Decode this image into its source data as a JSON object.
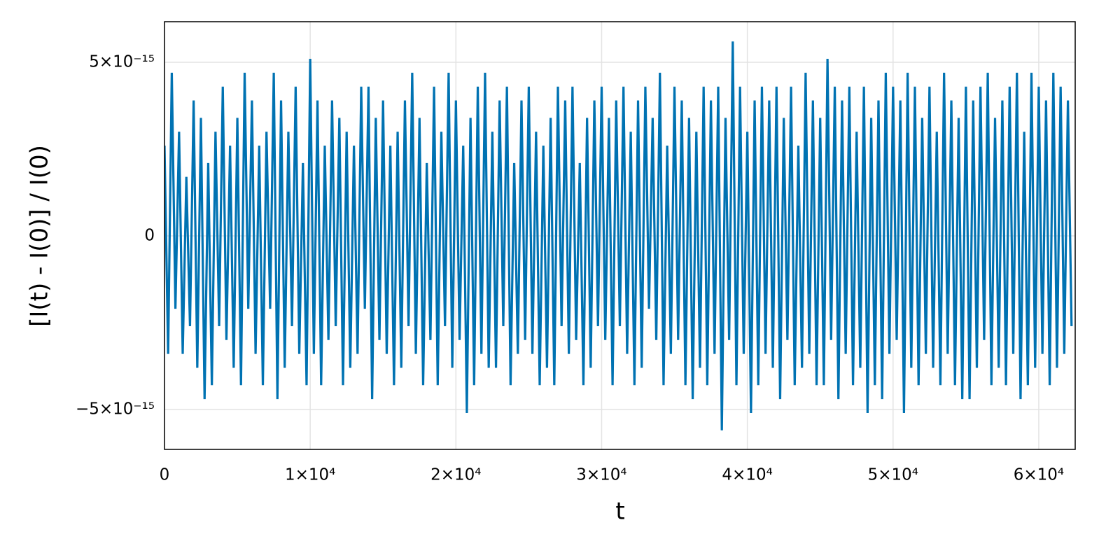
{
  "chart_data": {
    "type": "line",
    "x_label": "t",
    "y_label": "[I(t) - I(0)] / I(0)",
    "color": "#0072b2",
    "grid": true,
    "xlim": [
      0,
      62500
    ],
    "ylim": [
      -6.15e-15,
      6.17e-15
    ],
    "xticks": [
      0,
      {
        "value": 10000,
        "label": "1×10⁴"
      },
      {
        "value": 20000,
        "label": "2×10⁴"
      },
      {
        "value": 30000,
        "label": "3×10⁴"
      },
      {
        "value": 40000,
        "label": "4×10⁴"
      },
      {
        "value": 50000,
        "label": "5×10⁴"
      },
      {
        "value": 60000,
        "label": "6×10⁴"
      }
    ],
    "yticks": [
      {
        "value": -5e-15,
        "label": "−5×10⁻¹⁵"
      },
      0,
      {
        "value": 5e-15,
        "label": "5×10⁻¹⁵"
      }
    ],
    "x": [
      0,
      250,
      500,
      750,
      1000,
      1250,
      1500,
      1750,
      2000,
      2250,
      2500,
      2750,
      3000,
      3250,
      3500,
      3750,
      4000,
      4250,
      4500,
      4750,
      5000,
      5250,
      5500,
      5750,
      6000,
      6250,
      6500,
      6750,
      7000,
      7250,
      7500,
      7750,
      8000,
      8250,
      8500,
      8750,
      9000,
      9250,
      9500,
      9750,
      10000,
      10250,
      10500,
      10750,
      11000,
      11250,
      11500,
      11750,
      12000,
      12250,
      12500,
      12750,
      13000,
      13250,
      13500,
      13750,
      14000,
      14250,
      14500,
      14750,
      15000,
      15250,
      15500,
      15750,
      16000,
      16250,
      16500,
      16750,
      17000,
      17250,
      17500,
      17750,
      18000,
      18250,
      18500,
      18750,
      19000,
      19250,
      19500,
      19750,
      20000,
      20250,
      20500,
      20750,
      21000,
      21250,
      21500,
      21750,
      22000,
      22250,
      22500,
      22750,
      23000,
      23250,
      23500,
      23750,
      24000,
      24250,
      24500,
      24750,
      25000,
      25250,
      25500,
      25750,
      26000,
      26250,
      26500,
      26750,
      27000,
      27250,
      27500,
      27750,
      28000,
      28250,
      28500,
      28750,
      29000,
      29250,
      29500,
      29750,
      30000,
      30250,
      30500,
      30750,
      31000,
      31250,
      31500,
      31750,
      32000,
      32250,
      32500,
      32750,
      33000,
      33250,
      33500,
      33750,
      34000,
      34250,
      34500,
      34750,
      35000,
      35250,
      35500,
      35750,
      36000,
      36250,
      36500,
      36750,
      37000,
      37250,
      37500,
      37750,
      38000,
      38250,
      38500,
      38750,
      39000,
      39250,
      39500,
      39750,
      40000,
      40250,
      40500,
      40750,
      41000,
      41250,
      41500,
      41750,
      42000,
      42250,
      42500,
      42750,
      43000,
      43250,
      43500,
      43750,
      44000,
      44250,
      44500,
      44750,
      45000,
      45250,
      45500,
      45750,
      46000,
      46250,
      46500,
      46750,
      47000,
      47250,
      47500,
      47750,
      48000,
      48250,
      48500,
      48750,
      49000,
      49250,
      49500,
      49750,
      50000,
      50250,
      50500,
      50750,
      51000,
      51250,
      51500,
      51750,
      52000,
      52250,
      52500,
      52750,
      53000,
      53250,
      53500,
      53750,
      54000,
      54250,
      54500,
      54750,
      55000,
      55250,
      55500,
      55750,
      56000,
      56250,
      56500,
      56750,
      57000,
      57250,
      57500,
      57750,
      58000,
      58250,
      58500,
      58750,
      59000,
      59250,
      59500,
      59750,
      60000,
      60250,
      60500,
      60750,
      61000,
      61250,
      61500,
      61750,
      62000,
      62250
    ],
    "values": [
      2.6e-15,
      -3.4e-15,
      4.7e-15,
      -2.1e-15,
      3e-15,
      -3.4e-15,
      1.7e-15,
      -2.6e-15,
      3.9e-15,
      -3.8e-15,
      3.4e-15,
      -4.7e-15,
      2.1e-15,
      -4.3e-15,
      3e-15,
      -2.6e-15,
      4.3e-15,
      -3e-15,
      2.6e-15,
      -3.8e-15,
      3.4e-15,
      -4.3e-15,
      4.7e-15,
      -2.1e-15,
      3.9e-15,
      -3.4e-15,
      2.6e-15,
      -4.3e-15,
      3e-15,
      -2.1e-15,
      4.7e-15,
      -4.7e-15,
      3.9e-15,
      -3.8e-15,
      3e-15,
      -2.6e-15,
      4.3e-15,
      -3.4e-15,
      2.1e-15,
      -4.3e-15,
      5.1e-15,
      -3.4e-15,
      3.9e-15,
      -4.3e-15,
      2.6e-15,
      -3e-15,
      3.9e-15,
      -2.6e-15,
      3.4e-15,
      -4.3e-15,
      3e-15,
      -3.8e-15,
      2.6e-15,
      -3.4e-15,
      4.3e-15,
      -2.1e-15,
      4.3e-15,
      -4.7e-15,
      3.4e-15,
      -3e-15,
      3.9e-15,
      -3.4e-15,
      2.6e-15,
      -4.3e-15,
      3e-15,
      -3.8e-15,
      3.9e-15,
      -2.6e-15,
      4.7e-15,
      -3.4e-15,
      3.4e-15,
      -4.3e-15,
      2.1e-15,
      -3e-15,
      4.3e-15,
      -4.3e-15,
      3e-15,
      -2.6e-15,
      4.7e-15,
      -3.8e-15,
      3.9e-15,
      -3e-15,
      2.6e-15,
      -5.1e-15,
      3.4e-15,
      -4.3e-15,
      4.3e-15,
      -3.4e-15,
      4.7e-15,
      -3.8e-15,
      3e-15,
      -3.8e-15,
      3.9e-15,
      -2.6e-15,
      4.3e-15,
      -4.3e-15,
      2.1e-15,
      -3.4e-15,
      3.9e-15,
      -3e-15,
      4.3e-15,
      -3.4e-15,
      3e-15,
      -4.3e-15,
      2.6e-15,
      -3.8e-15,
      3.4e-15,
      -4.3e-15,
      4.3e-15,
      -2.6e-15,
      3.9e-15,
      -3.4e-15,
      4.3e-15,
      -3e-15,
      2.1e-15,
      -4.3e-15,
      3.4e-15,
      -3.8e-15,
      3.9e-15,
      -2.6e-15,
      4.3e-15,
      -3e-15,
      3.4e-15,
      -4.3e-15,
      3.9e-15,
      -2.6e-15,
      4.3e-15,
      -3.4e-15,
      3e-15,
      -4.3e-15,
      3.9e-15,
      -3.8e-15,
      4.3e-15,
      -2.1e-15,
      3.4e-15,
      -3e-15,
      4.7e-15,
      -4.3e-15,
      2.6e-15,
      -3.4e-15,
      4.3e-15,
      -3e-15,
      3.9e-15,
      -4.3e-15,
      3.4e-15,
      -4.7e-15,
      3e-15,
      -3.8e-15,
      4.3e-15,
      -4.3e-15,
      3.9e-15,
      -3.4e-15,
      4.3e-15,
      -5.6e-15,
      3.4e-15,
      -3e-15,
      5.6e-15,
      -4.3e-15,
      4.3e-15,
      -3.4e-15,
      3e-15,
      -5.1e-15,
      3.9e-15,
      -4.3e-15,
      4.3e-15,
      -3.4e-15,
      3.9e-15,
      -3.8e-15,
      4.3e-15,
      -4.7e-15,
      3.4e-15,
      -3e-15,
      4.3e-15,
      -4.3e-15,
      2.6e-15,
      -3.8e-15,
      4.7e-15,
      -3.4e-15,
      3.9e-15,
      -4.3e-15,
      3.4e-15,
      -4.3e-15,
      5.1e-15,
      -3e-15,
      4.3e-15,
      -4.7e-15,
      3.9e-15,
      -3.4e-15,
      4.3e-15,
      -4.3e-15,
      3e-15,
      -3.8e-15,
      4.3e-15,
      -5.1e-15,
      3.4e-15,
      -4.3e-15,
      3.9e-15,
      -4.7e-15,
      4.7e-15,
      -3.4e-15,
      4.3e-15,
      -3e-15,
      3.9e-15,
      -5.1e-15,
      4.7e-15,
      -3.8e-15,
      4.3e-15,
      -4.3e-15,
      3.4e-15,
      -3.4e-15,
      4.3e-15,
      -3.8e-15,
      3e-15,
      -4.3e-15,
      4.7e-15,
      -3.4e-15,
      3.9e-15,
      -4.3e-15,
      3.4e-15,
      -4.7e-15,
      4.3e-15,
      -4.7e-15,
      3.9e-15,
      -3.8e-15,
      4.3e-15,
      -3e-15,
      4.7e-15,
      -4.3e-15,
      3.4e-15,
      -3.8e-15,
      3.9e-15,
      -4.3e-15,
      4.3e-15,
      -3.4e-15,
      4.7e-15,
      -4.7e-15,
      3e-15,
      -4.3e-15,
      4.7e-15,
      -3.8e-15,
      4.3e-15,
      -3.4e-15,
      3.9e-15,
      -4.3e-15,
      4.7e-15,
      -3.8e-15,
      4.3e-15,
      -3.4e-15,
      3.9e-15,
      -2.6e-15
    ]
  }
}
